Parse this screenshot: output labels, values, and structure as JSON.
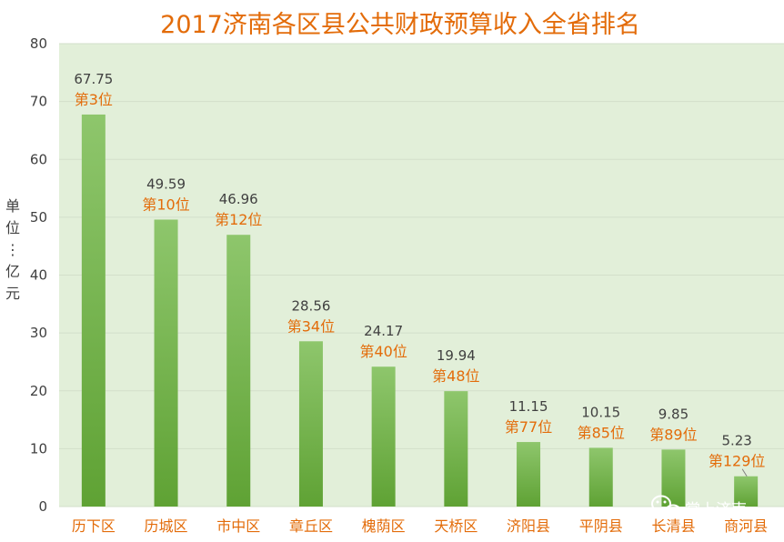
{
  "chart_data": {
    "type": "bar",
    "title": "2017济南各区县公共财政预算收入全省排名",
    "ylabel": "单位：亿元",
    "ylim": [
      0,
      80
    ],
    "yticks": [
      0,
      10,
      20,
      30,
      40,
      50,
      60,
      70,
      80
    ],
    "grid": true,
    "categories": [
      "历下区",
      "历城区",
      "市中区",
      "章丘区",
      "槐荫区",
      "天桥区",
      "济阳县",
      "平阴县",
      "长清县",
      "商河县"
    ],
    "values": [
      67.75,
      49.59,
      46.96,
      28.56,
      24.17,
      19.94,
      11.15,
      10.15,
      9.85,
      5.23
    ],
    "value_labels": [
      "67.75",
      "49.59",
      "46.96",
      "28.56",
      "24.17",
      "19.94",
      "11.15",
      "10.15",
      "9.85",
      "5.23"
    ],
    "rank_labels": [
      "第3位",
      "第10位",
      "第12位",
      "第34位",
      "第40位",
      "第48位",
      "第77位",
      "第85位",
      "第89位",
      "第129位"
    ],
    "colors": {
      "plot_bg": "#e2efd9",
      "bar_top": "#8ec66c",
      "bar_bottom": "#5fa234",
      "title": "#e36c0a",
      "category": "#e36c0a",
      "rank": "#e36c0a",
      "value": "#404040",
      "grid": "#d3dfca"
    }
  },
  "watermark": {
    "icon": "wechat-icon",
    "text": "掌上济南"
  }
}
